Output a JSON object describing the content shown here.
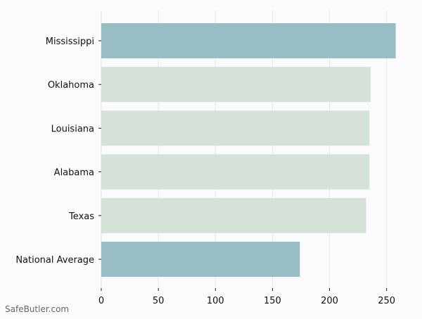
{
  "chart_data": {
    "type": "bar",
    "orientation": "horizontal",
    "categories": [
      "Mississippi",
      "Oklahoma",
      "Louisiana",
      "Alabama",
      "Texas",
      "National Average"
    ],
    "values": [
      258,
      236,
      235,
      235,
      232,
      174
    ],
    "bar_colors": [
      "#98bdc5",
      "#d5e2d8",
      "#d5e2d8",
      "#d5e2d8",
      "#d5e2d8",
      "#98bdc5"
    ],
    "xlim": [
      0,
      265
    ],
    "xticks": [
      0,
      50,
      100,
      150,
      200,
      250
    ],
    "title": "",
    "xlabel": "",
    "ylabel": "",
    "grid": true
  },
  "watermark": "SafeButler.com",
  "colors": {
    "background": "#fbfbfd",
    "grid": "#e6e6ea",
    "axis_text": "#111111"
  }
}
